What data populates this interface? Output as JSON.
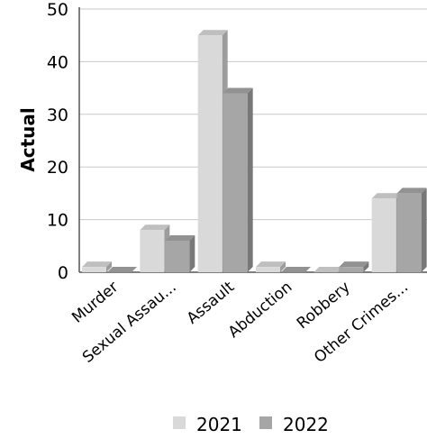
{
  "chart_data": {
    "type": "bar",
    "title": "",
    "xlabel": "",
    "ylabel": "Actual",
    "categories": [
      "Murder",
      "Sexual Assau...",
      "Assault",
      "Abduction",
      "Robbery",
      "Other Crimes..."
    ],
    "series": [
      {
        "name": "2021",
        "values": [
          1,
          8,
          45,
          1,
          0,
          14
        ],
        "color": "#d9d9d9"
      },
      {
        "name": "2022",
        "values": [
          0,
          6,
          34,
          0,
          1,
          15
        ],
        "color": "#a6a6a6"
      }
    ],
    "ylim": [
      0,
      50
    ],
    "yticks": [
      "0",
      "10",
      "20",
      "30",
      "40",
      "50"
    ],
    "grid": true,
    "legend_position": "bottom",
    "style": "3d"
  }
}
